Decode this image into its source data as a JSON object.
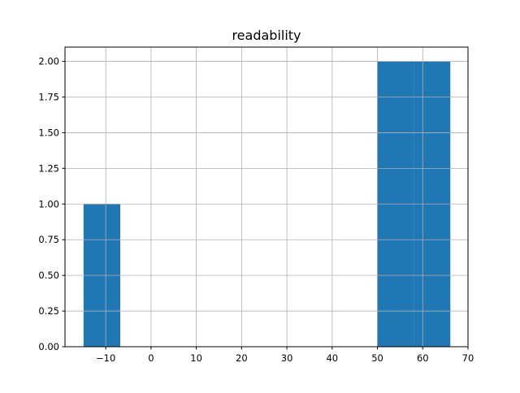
{
  "chart_data": {
    "type": "bar",
    "title": "readability",
    "xlabel": "",
    "ylabel": "",
    "bin_edges": [
      -14.9,
      -6.8,
      1.3,
      9.4,
      17.5,
      25.6,
      33.7,
      41.8,
      49.9,
      58.0,
      66.1
    ],
    "counts": [
      1,
      0,
      0,
      0,
      0,
      0,
      0,
      0,
      2,
      2
    ],
    "xlim": [
      -19,
      70
    ],
    "ylim": [
      0,
      2.1
    ],
    "xticks": [
      -10,
      0,
      10,
      20,
      30,
      40,
      50,
      60,
      70
    ],
    "xtick_labels": [
      "−10",
      "0",
      "10",
      "20",
      "30",
      "40",
      "50",
      "60",
      "70"
    ],
    "yticks": [
      0,
      0.25,
      0.5,
      0.75,
      1.0,
      1.25,
      1.5,
      1.75,
      2.0
    ],
    "ytick_labels": [
      "0.00",
      "0.25",
      "0.50",
      "0.75",
      "1.00",
      "1.25",
      "1.50",
      "1.75",
      "2.00"
    ],
    "grid": true,
    "bar_color": "#1f77b4",
    "grid_color": "#b0b0b0"
  }
}
